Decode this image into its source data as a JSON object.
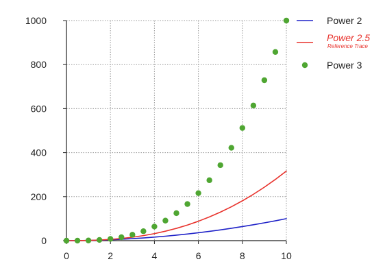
{
  "chart_data": {
    "type": "line",
    "title": "",
    "xlabel": "",
    "ylabel": "",
    "xlim": [
      0,
      10
    ],
    "ylim": [
      0,
      1000
    ],
    "x_ticks": [
      0,
      2,
      4,
      6,
      8,
      10
    ],
    "y_ticks": [
      0,
      200,
      400,
      600,
      800,
      1000
    ],
    "x_tick_labels": [
      "0",
      "2",
      "4",
      "6",
      "8",
      "10"
    ],
    "y_tick_labels": [
      "0",
      "200",
      "400",
      "600",
      "800",
      "1000"
    ],
    "grid": true,
    "legend_position": "top-right outside",
    "x": [
      0,
      0.5,
      1,
      1.5,
      2,
      2.5,
      3,
      3.5,
      4,
      4.5,
      5,
      5.5,
      6,
      6.5,
      7,
      7.5,
      8,
      8.5,
      9,
      9.5,
      10
    ],
    "series": [
      {
        "name": "Power 2",
        "style": "line",
        "color": "#1f22c8",
        "values": [
          0,
          0.25,
          1,
          2.25,
          4,
          6.25,
          9,
          12.25,
          16,
          20.25,
          25,
          30.25,
          36,
          42.25,
          49,
          56.25,
          64,
          72.25,
          81,
          90.25,
          100
        ]
      },
      {
        "name": "Power 2.5",
        "subtitle": "Reference Trace",
        "style": "line",
        "color": "#e8322c",
        "values": [
          0,
          0.18,
          1,
          2.76,
          5.66,
          9.88,
          15.59,
          22.92,
          32,
          42.96,
          55.9,
          70.94,
          88.18,
          107.72,
          129.64,
          154.04,
          181.02,
          210.64,
          243,
          278.17,
          316.23
        ]
      },
      {
        "name": "Power 3",
        "style": "scatter",
        "color": "#4fa632",
        "values": [
          0,
          0.125,
          1,
          3.375,
          8,
          15.625,
          27,
          42.875,
          64,
          91.125,
          125,
          166.375,
          216,
          274.625,
          343,
          421.875,
          512,
          614.125,
          729,
          857.375,
          1000
        ]
      }
    ]
  }
}
